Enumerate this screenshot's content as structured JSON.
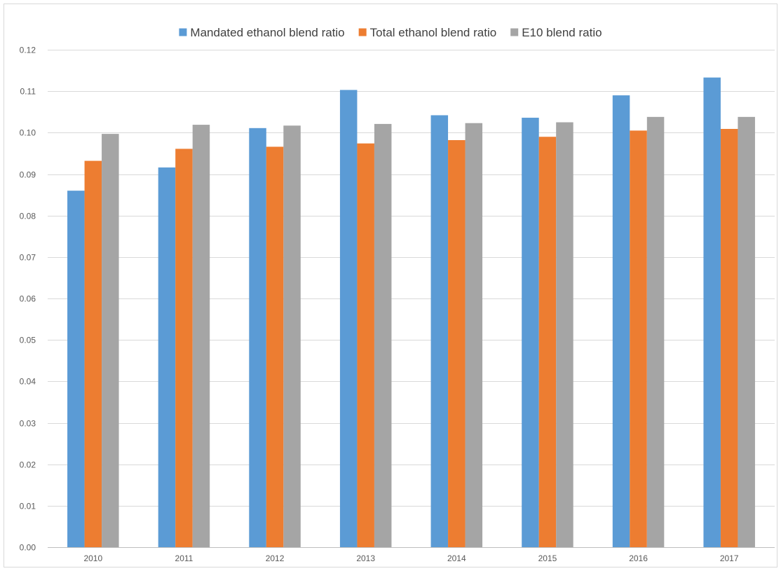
{
  "chart_data": {
    "type": "bar",
    "title": "",
    "xlabel": "",
    "ylabel": "",
    "categories": [
      "2010",
      "2011",
      "2012",
      "2013",
      "2014",
      "2015",
      "2016",
      "2017"
    ],
    "ylim": [
      0,
      0.12
    ],
    "yticks": [
      "0.00",
      "0.01",
      "0.02",
      "0.03",
      "0.04",
      "0.05",
      "0.06",
      "0.07",
      "0.08",
      "0.09",
      "0.10",
      "0.11",
      "0.12"
    ],
    "grid": true,
    "legend_position": "top",
    "series": [
      {
        "name": "Mandated ethanol blend ratio",
        "color": "#5b9bd5",
        "values": [
          0.086,
          0.0916,
          0.1011,
          0.1103,
          0.1042,
          0.1036,
          0.109,
          0.1133
        ]
      },
      {
        "name": "Total ethanol blend ratio",
        "color": "#ed7d31",
        "values": [
          0.0932,
          0.0961,
          0.0966,
          0.0974,
          0.0982,
          0.099,
          0.1005,
          0.1009
        ]
      },
      {
        "name": "E10 blend ratio",
        "color": "#a5a5a5",
        "values": [
          0.0997,
          0.1019,
          0.1017,
          0.1021,
          0.1023,
          0.1025,
          0.1038,
          0.1038
        ]
      }
    ]
  }
}
